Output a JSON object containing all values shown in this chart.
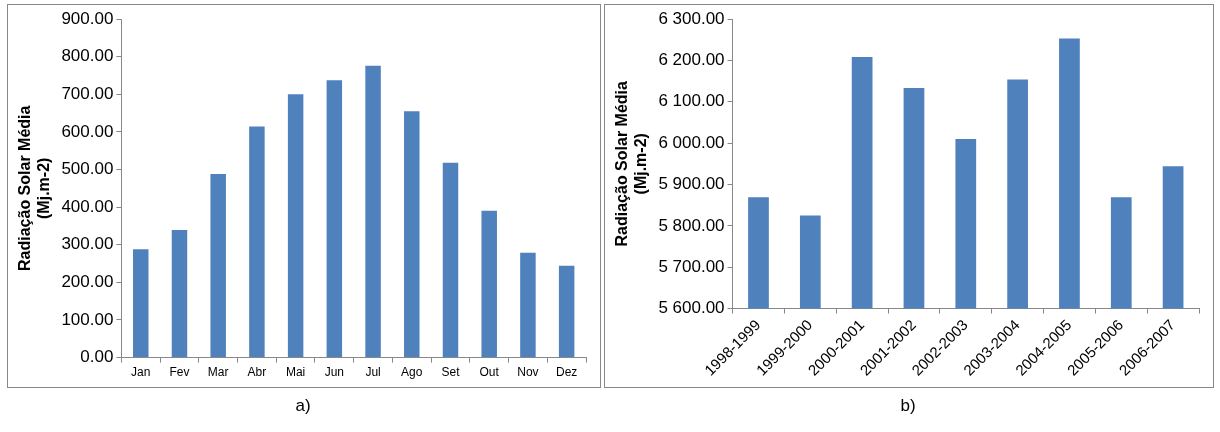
{
  "chart_data": [
    {
      "type": "bar",
      "ylabel": "Radiação Solar Média\n(Mj.m-2)",
      "categories": [
        "Jan",
        "Fev",
        "Mar",
        "Abr",
        "Mai",
        "Jun",
        "Jul",
        "Ago",
        "Set",
        "Out",
        "Nov",
        "Dez"
      ],
      "values": [
        288,
        339,
        488,
        614,
        700,
        737,
        776,
        655,
        518,
        390,
        279,
        244
      ],
      "color": "#4f81bd",
      "ylim": [
        0,
        900
      ],
      "yticks": [
        {
          "value": 0,
          "label": "0.00"
        },
        {
          "value": 100,
          "label": "100.00"
        },
        {
          "value": 200,
          "label": "200.00"
        },
        {
          "value": 300,
          "label": "300.00"
        },
        {
          "value": 400,
          "label": "400.00"
        },
        {
          "value": 500,
          "label": "500.00"
        },
        {
          "value": 600,
          "label": "600.00"
        },
        {
          "value": 700,
          "label": "700.00"
        },
        {
          "value": 800,
          "label": "800.00"
        },
        {
          "value": 900,
          "label": "900.00"
        }
      ],
      "annotations": [
        "a)"
      ]
    },
    {
      "type": "bar",
      "ylabel": "Radiação Solar Média\n(Mj.m-2)",
      "categories": [
        "1998-1999",
        "1999-2000",
        "2000-2001",
        "2001-2002",
        "2002-2003",
        "2003-2004",
        "2004-2005",
        "2005-2006",
        "2006-2007"
      ],
      "values": [
        5869,
        5825,
        6208,
        6133,
        6010,
        6154,
        6253,
        5869,
        5944
      ],
      "color": "#4f81bd",
      "ylim": [
        5600,
        6300
      ],
      "yticks": [
        {
          "value": 5600,
          "label": "5 600.00"
        },
        {
          "value": 5700,
          "label": "5 700.00"
        },
        {
          "value": 5800,
          "label": "5 800.00"
        },
        {
          "value": 5900,
          "label": "5 900.00"
        },
        {
          "value": 6000,
          "label": "6 000.00"
        },
        {
          "value": 6100,
          "label": "6 100.00"
        },
        {
          "value": 6200,
          "label": "6 200.00"
        },
        {
          "value": 6300,
          "label": "6 300.00"
        }
      ],
      "annotations": [
        "b)"
      ]
    }
  ]
}
